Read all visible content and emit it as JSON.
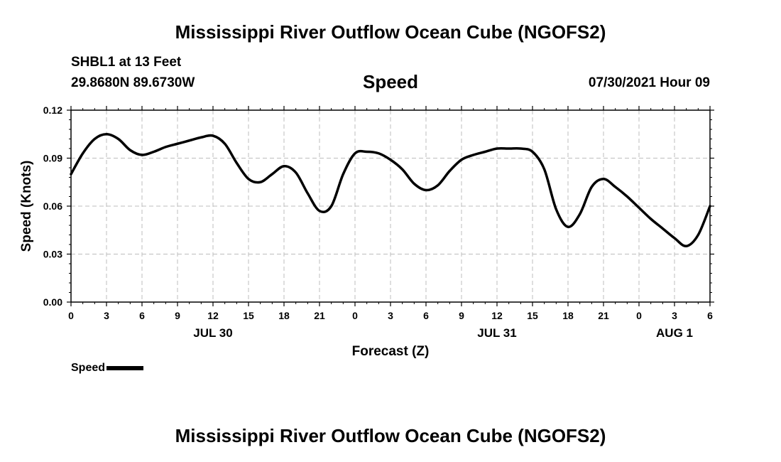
{
  "header": {
    "title": "Mississippi River Outflow Ocean Cube (NGOFS2)",
    "station": "SHBL1 at 13 Feet",
    "coords": "29.8680N  89.6730W",
    "parameter": "Speed",
    "timestamp": "07/30/2021 Hour 09"
  },
  "footer": {
    "title": "Mississippi River Outflow Ocean Cube (NGOFS2)"
  },
  "legend": {
    "label": "Speed",
    "color": "#000000"
  },
  "chart_data": {
    "type": "line",
    "xlabel": "Forecast (Z)",
    "ylabel": "Speed (Knots)",
    "xlim": [
      0,
      54
    ],
    "ylim": [
      0.0,
      0.12
    ],
    "grid": true,
    "legend_position": "bottom-left",
    "x_ticks": [
      {
        "x": 0,
        "label": "0"
      },
      {
        "x": 3,
        "label": "3"
      },
      {
        "x": 6,
        "label": "6"
      },
      {
        "x": 9,
        "label": "9"
      },
      {
        "x": 12,
        "label": "12"
      },
      {
        "x": 15,
        "label": "15"
      },
      {
        "x": 18,
        "label": "18"
      },
      {
        "x": 21,
        "label": "21"
      },
      {
        "x": 24,
        "label": "0"
      },
      {
        "x": 27,
        "label": "3"
      },
      {
        "x": 30,
        "label": "6"
      },
      {
        "x": 33,
        "label": "9"
      },
      {
        "x": 36,
        "label": "12"
      },
      {
        "x": 39,
        "label": "15"
      },
      {
        "x": 42,
        "label": "18"
      },
      {
        "x": 45,
        "label": "21"
      },
      {
        "x": 48,
        "label": "0"
      },
      {
        "x": 51,
        "label": "3"
      },
      {
        "x": 54,
        "label": "6"
      }
    ],
    "date_labels": [
      {
        "x": 12,
        "label": "JUL 30"
      },
      {
        "x": 36,
        "label": "JUL 31"
      },
      {
        "x": 51,
        "label": "AUG 1"
      }
    ],
    "y_ticks": [
      {
        "y": 0.0,
        "label": "0.00"
      },
      {
        "y": 0.03,
        "label": "0.03"
      },
      {
        "y": 0.06,
        "label": "0.06"
      },
      {
        "y": 0.09,
        "label": "0.09"
      },
      {
        "y": 0.12,
        "label": "0.12"
      }
    ],
    "series": [
      {
        "name": "Speed",
        "x": [
          0,
          1,
          2,
          3,
          4,
          5,
          6,
          7,
          8,
          9,
          10,
          11,
          12,
          13,
          14,
          15,
          16,
          17,
          18,
          19,
          20,
          21,
          22,
          23,
          24,
          25,
          26,
          27,
          28,
          29,
          30,
          31,
          32,
          33,
          34,
          35,
          36,
          37,
          38,
          39,
          40,
          41,
          42,
          43,
          44,
          45,
          46,
          47,
          48,
          49,
          50,
          51,
          52,
          53,
          54
        ],
        "values": [
          0.08,
          0.093,
          0.102,
          0.105,
          0.102,
          0.095,
          0.092,
          0.094,
          0.097,
          0.099,
          0.101,
          0.103,
          0.104,
          0.099,
          0.087,
          0.077,
          0.075,
          0.08,
          0.085,
          0.081,
          0.068,
          0.057,
          0.06,
          0.08,
          0.093,
          0.094,
          0.093,
          0.089,
          0.083,
          0.074,
          0.07,
          0.073,
          0.082,
          0.089,
          0.092,
          0.094,
          0.096,
          0.096,
          0.096,
          0.094,
          0.083,
          0.058,
          0.047,
          0.055,
          0.072,
          0.077,
          0.072,
          0.066,
          0.059,
          0.052,
          0.046,
          0.04,
          0.035,
          0.042,
          0.06
        ]
      }
    ]
  }
}
